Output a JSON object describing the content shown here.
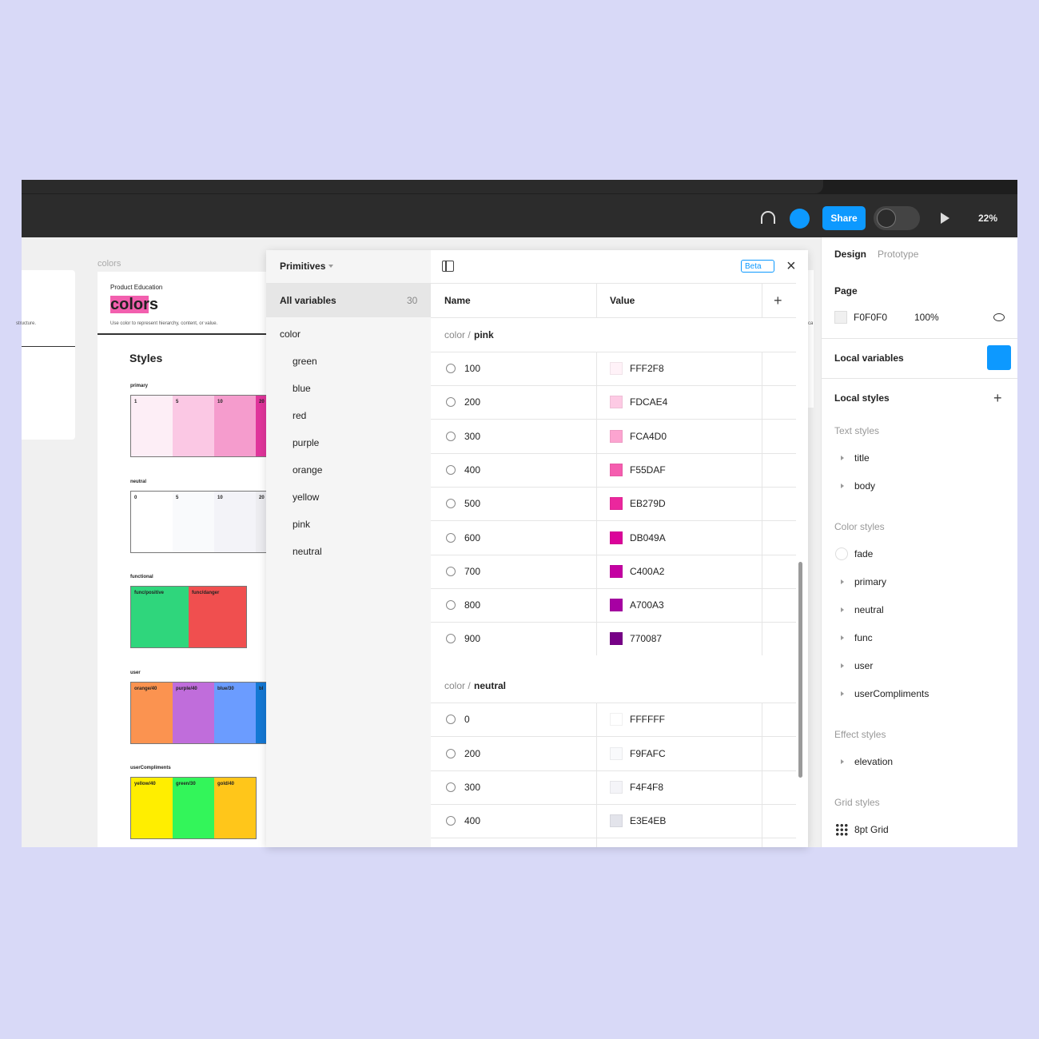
{
  "toolbar": {
    "share": "Share",
    "zoom": "22%"
  },
  "canvas": {
    "left_fragment": "structure.",
    "right_fragment": "can",
    "frame_label": "colors",
    "eyebrow": "Product Education",
    "title": "colors",
    "description": "Use color to represent hierarchy, content, or value.",
    "styles_heading": "Styles",
    "groups": [
      {
        "name": "primary",
        "swatches": [
          {
            "label": "1",
            "color": "#fdeef6"
          },
          {
            "label": "5",
            "color": "#fbc8e4"
          },
          {
            "label": "10",
            "color": "#f59ccd"
          },
          {
            "label": "20",
            "color": "#e0359b"
          }
        ]
      },
      {
        "name": "neutral",
        "swatches": [
          {
            "label": "0",
            "color": "#ffffff"
          },
          {
            "label": "5",
            "color": "#f9fafc"
          },
          {
            "label": "10",
            "color": "#f3f3f8"
          },
          {
            "label": "20",
            "color": "#ececf0"
          }
        ]
      },
      {
        "name": "functional",
        "swatches": [
          {
            "label": "func/positive",
            "color": "#2fd67c"
          },
          {
            "label": "func/danger",
            "color": "#f04f4f"
          }
        ]
      },
      {
        "name": "user",
        "swatches": [
          {
            "label": "orange/40",
            "color": "#fb9350"
          },
          {
            "label": "purple/40",
            "color": "#c06ddb"
          },
          {
            "label": "blue/30",
            "color": "#6b9cff"
          },
          {
            "label": "bl",
            "color": "#1478d4"
          }
        ]
      },
      {
        "name": "userCompliments",
        "swatches": [
          {
            "label": "yellow/40",
            "color": "#ffee00"
          },
          {
            "label": "green/30",
            "color": "#33f55a"
          },
          {
            "label": "gold/40",
            "color": "#ffc61a"
          }
        ]
      }
    ]
  },
  "variables": {
    "collection": "Primitives",
    "all_variables": "All variables",
    "count": 30,
    "group_root": "color",
    "groups": [
      "green",
      "blue",
      "red",
      "purple",
      "orange",
      "yellow",
      "pink",
      "neutral"
    ],
    "beta": "Beta",
    "columns": [
      "Name",
      "Value"
    ],
    "sections": [
      {
        "prefix": "color /",
        "name": "pink",
        "rows": [
          {
            "name": "100",
            "value": "FFF2F8"
          },
          {
            "name": "200",
            "value": "FDCAE4"
          },
          {
            "name": "300",
            "value": "FCA4D0"
          },
          {
            "name": "400",
            "value": "F55DAF"
          },
          {
            "name": "500",
            "value": "EB279D"
          },
          {
            "name": "600",
            "value": "DB049A"
          },
          {
            "name": "700",
            "value": "C400A2"
          },
          {
            "name": "800",
            "value": "A700A3"
          },
          {
            "name": "900",
            "value": "770087"
          }
        ]
      },
      {
        "prefix": "color /",
        "name": "neutral",
        "rows": [
          {
            "name": "0",
            "value": "FFFFFF"
          },
          {
            "name": "200",
            "value": "F9FAFC"
          },
          {
            "name": "300",
            "value": "F4F4F8"
          },
          {
            "name": "400",
            "value": "E3E4EB"
          }
        ]
      }
    ]
  },
  "panel": {
    "tabs": [
      "Design",
      "Prototype"
    ],
    "page_heading": "Page",
    "page_color": "F0F0F0",
    "page_opacity": "100%",
    "local_variables": "Local variables",
    "local_styles": "Local styles",
    "style_groups": [
      {
        "heading": "Text styles",
        "items": [
          "title",
          "body"
        ]
      },
      {
        "heading": "Color styles",
        "items": [
          "fade",
          "primary",
          "neutral",
          "func",
          "user",
          "userCompliments"
        ]
      },
      {
        "heading": "Effect styles",
        "items": [
          "elevation"
        ]
      },
      {
        "heading": "Grid styles",
        "items": [
          "8pt Grid"
        ]
      }
    ]
  }
}
